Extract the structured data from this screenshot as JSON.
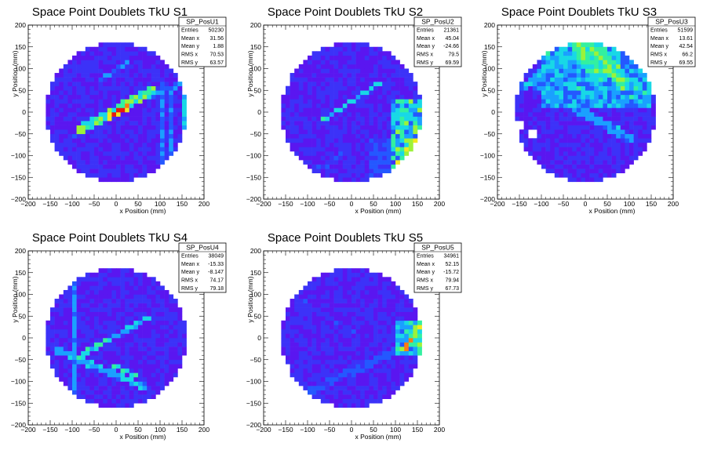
{
  "page": {
    "background": "#ffffff"
  },
  "palette": {
    "low": "#5a16f0",
    "levels": [
      "#5a16f0",
      "#3c32f8",
      "#2458ff",
      "#1aa0ff",
      "#18d8e6",
      "#33f0a0",
      "#9cf23a",
      "#f0e820",
      "#ff7a10",
      "#e81a10"
    ]
  },
  "chart_data": [
    {
      "type": "heatmap",
      "title": "Space Point Doublets TkU S1",
      "xlabel": "x Position (mm)",
      "ylabel": "y Position (mm)",
      "xlim": [
        -200,
        200
      ],
      "ylim": [
        -200,
        200
      ],
      "xticks": [
        "−200",
        "−150",
        "−100",
        "−50",
        "0",
        "50",
        "100",
        "150",
        "200"
      ],
      "yticks": [
        "−200",
        "−150",
        "−100",
        "−50",
        "0",
        "50",
        "100",
        "150",
        "200"
      ],
      "bin_size_mm": 10,
      "radius_mm": 160,
      "stats": {
        "name": "SP_PosU1",
        "rows": [
          {
            "label": "Entries",
            "value": "50230"
          },
          {
            "label": "Mean x",
            "value": "31.56"
          },
          {
            "label": "Mean y",
            "value": "1.88"
          },
          {
            "label": "RMS x",
            "value": "70.53"
          },
          {
            "label": "RMS y",
            "value": "63.57"
          }
        ]
      },
      "features": [
        {
          "kind": "line",
          "from": [
            -80,
            -40
          ],
          "to": [
            80,
            50
          ],
          "width": 22,
          "level": 0.55
        },
        {
          "kind": "line",
          "from": [
            -15,
            -12
          ],
          "to": [
            25,
            12
          ],
          "width": 14,
          "level": 0.95
        },
        {
          "kind": "line",
          "from": [
            -40,
            70
          ],
          "to": [
            30,
            120
          ],
          "width": 8,
          "level": 0.3
        },
        {
          "kind": "line",
          "from": [
            -100,
            -60
          ],
          "to": [
            -60,
            -30
          ],
          "width": 8,
          "level": 0.3
        },
        {
          "kind": "line",
          "from": [
            105,
            -150
          ],
          "to": [
            105,
            60
          ],
          "width": 12,
          "level": 0.28
        },
        {
          "kind": "line",
          "from": [
            125,
            -140
          ],
          "to": [
            125,
            60
          ],
          "width": 10,
          "level": 0.26
        },
        {
          "kind": "line",
          "from": [
            155,
            -70
          ],
          "to": [
            155,
            70
          ],
          "width": 18,
          "level": 0.4
        },
        {
          "kind": "line",
          "from": [
            60,
            30
          ],
          "to": [
            160,
            70
          ],
          "width": 10,
          "level": 0.3
        }
      ],
      "holes": []
    },
    {
      "type": "heatmap",
      "title": "Space Point Doublets TkU S2",
      "xlabel": "x Position (mm)",
      "ylabel": "y Position (mm)",
      "xlim": [
        -200,
        200
      ],
      "ylim": [
        -200,
        200
      ],
      "xticks": [
        "−200",
        "−150",
        "−100",
        "−50",
        "0",
        "50",
        "100",
        "150",
        "200"
      ],
      "yticks": [
        "−200",
        "−150",
        "−100",
        "−50",
        "0",
        "50",
        "100",
        "150",
        "200"
      ],
      "bin_size_mm": 10,
      "radius_mm": 160,
      "stats": {
        "name": "SP_PosU2",
        "rows": [
          {
            "label": "Entries",
            "value": "21361"
          },
          {
            "label": "Mean x",
            "value": "45.04"
          },
          {
            "label": "Mean y",
            "value": "-24.66"
          },
          {
            "label": "RMS x",
            "value": "79.5"
          },
          {
            "label": "RMS y",
            "value": "69.59"
          }
        ]
      },
      "features": [
        {
          "kind": "line",
          "from": [
            -70,
            -20
          ],
          "to": [
            70,
            70
          ],
          "width": 8,
          "level": 0.42
        },
        {
          "kind": "rect",
          "x": [
            95,
            165
          ],
          "y": [
            -110,
            30
          ],
          "level": 0.5
        },
        {
          "kind": "rect",
          "x": [
            40,
            150
          ],
          "y": [
            -150,
            -60
          ],
          "level": 0.2
        },
        {
          "kind": "line",
          "from": [
            100,
            -130
          ],
          "to": [
            150,
            -60
          ],
          "width": 14,
          "level": 0.65
        },
        {
          "kind": "line",
          "from": [
            -120,
            -160
          ],
          "to": [
            -10,
            -90
          ],
          "width": 16,
          "level": 0.16
        }
      ],
      "holes": [
        [
          -150,
          70
        ]
      ]
    },
    {
      "type": "heatmap",
      "title": "Space Point Doublets TkU S3",
      "xlabel": "x Position (mm)",
      "ylabel": "y Position (mm)",
      "xlim": [
        -200,
        200
      ],
      "ylim": [
        -200,
        200
      ],
      "xticks": [
        "−200",
        "−150",
        "−100",
        "−50",
        "0",
        "50",
        "100",
        "150",
        "200"
      ],
      "yticks": [
        "−200",
        "−150",
        "−100",
        "−50",
        "0",
        "50",
        "100",
        "150",
        "200"
      ],
      "bin_size_mm": 10,
      "radius_mm": 160,
      "stats": {
        "name": "SP_PosU3",
        "rows": [
          {
            "label": "Entries",
            "value": "51599"
          },
          {
            "label": "Mean x",
            "value": "13.61"
          },
          {
            "label": "Mean y",
            "value": "42.54"
          },
          {
            "label": "RMS x",
            "value": "66.2"
          },
          {
            "label": "RMS y",
            "value": "69.55"
          }
        ]
      },
      "features": [
        {
          "kind": "rect",
          "x": [
            -100,
            150
          ],
          "y": [
            10,
            160
          ],
          "level": 0.38
        },
        {
          "kind": "line",
          "from": [
            -110,
            60
          ],
          "to": [
            100,
            -60
          ],
          "width": 20,
          "level": 0.32
        },
        {
          "kind": "line",
          "from": [
            -20,
            160
          ],
          "to": [
            40,
            90
          ],
          "width": 40,
          "level": 0.55
        },
        {
          "kind": "line",
          "from": [
            30,
            150
          ],
          "to": [
            90,
            60
          ],
          "width": 30,
          "level": 0.55
        },
        {
          "kind": "line",
          "from": [
            -140,
            60
          ],
          "to": [
            -40,
            130
          ],
          "width": 18,
          "level": 0.35
        },
        {
          "kind": "line",
          "from": [
            100,
            30
          ],
          "to": [
            150,
            60
          ],
          "width": 16,
          "level": 0.25
        }
      ],
      "holes": [
        [
          -150,
          -30
        ],
        [
          -120,
          -50
        ]
      ]
    },
    {
      "type": "heatmap",
      "title": "Space Point Doublets TkU S4",
      "xlabel": "x Position (mm)",
      "ylabel": "y Position (mm)",
      "xlim": [
        -200,
        200
      ],
      "ylim": [
        -200,
        200
      ],
      "xticks": [
        "−200",
        "−150",
        "−100",
        "−50",
        "0",
        "50",
        "100",
        "150",
        "200"
      ],
      "yticks": [
        "−200",
        "−150",
        "−100",
        "−50",
        "0",
        "50",
        "100",
        "150",
        "200"
      ],
      "bin_size_mm": 10,
      "radius_mm": 160,
      "stats": {
        "name": "SP_PosU4",
        "rows": [
          {
            "label": "Entries",
            "value": "38049"
          },
          {
            "label": "Mean x",
            "value": "-15.33"
          },
          {
            "label": "Mean y",
            "value": "-8.147"
          },
          {
            "label": "RMS x",
            "value": "74.17"
          },
          {
            "label": "RMS y",
            "value": "79.18"
          }
        ]
      },
      "features": [
        {
          "kind": "line",
          "from": [
            -100,
            -50
          ],
          "to": [
            80,
            50
          ],
          "width": 10,
          "level": 0.45
        },
        {
          "kind": "line",
          "from": [
            -130,
            -30
          ],
          "to": [
            60,
            -110
          ],
          "width": 16,
          "level": 0.35
        },
        {
          "kind": "line",
          "from": [
            -95,
            -140
          ],
          "to": [
            -95,
            140
          ],
          "width": 10,
          "level": 0.3
        },
        {
          "kind": "line",
          "from": [
            -60,
            -150
          ],
          "to": [
            -60,
            150
          ],
          "width": 8,
          "level": 0.2
        },
        {
          "kind": "line",
          "from": [
            -10,
            -60
          ],
          "to": [
            50,
            -90
          ],
          "width": 12,
          "level": 0.45
        }
      ],
      "holes": []
    },
    {
      "type": "heatmap",
      "title": "Space Point Doublets TkU S5",
      "xlabel": "x Position (mm)",
      "ylabel": "y Position (mm)",
      "xlim": [
        -200,
        200
      ],
      "ylim": [
        -200,
        200
      ],
      "xticks": [
        "−200",
        "−150",
        "−100",
        "−50",
        "0",
        "50",
        "100",
        "150",
        "200"
      ],
      "yticks": [
        "−200",
        "−150",
        "−100",
        "−50",
        "0",
        "50",
        "100",
        "150",
        "200"
      ],
      "bin_size_mm": 10,
      "radius_mm": 160,
      "stats": {
        "name": "SP_PosU5",
        "rows": [
          {
            "label": "Entries",
            "value": "34961"
          },
          {
            "label": "Mean x",
            "value": "52.15"
          },
          {
            "label": "Mean y",
            "value": "-15.72"
          },
          {
            "label": "RMS x",
            "value": "79.94"
          },
          {
            "label": "RMS y",
            "value": "67.73"
          }
        ]
      },
      "features": [
        {
          "kind": "rect",
          "x": [
            100,
            165
          ],
          "y": [
            -40,
            40
          ],
          "level": 0.5
        },
        {
          "kind": "line",
          "from": [
            120,
            -30
          ],
          "to": [
            160,
            40
          ],
          "width": 14,
          "level": 0.75
        },
        {
          "kind": "line",
          "from": [
            -50,
            50
          ],
          "to": [
            -50,
            -40
          ],
          "width": 10,
          "level": 0.18
        },
        {
          "kind": "line",
          "from": [
            -110,
            -130
          ],
          "to": [
            100,
            -30
          ],
          "width": 18,
          "level": 0.2
        },
        {
          "kind": "line",
          "from": [
            -120,
            90
          ],
          "to": [
            10,
            10
          ],
          "width": 10,
          "level": 0.14
        }
      ],
      "holes": [
        [
          -150,
          100
        ],
        [
          -150,
          -70
        ]
      ]
    }
  ]
}
